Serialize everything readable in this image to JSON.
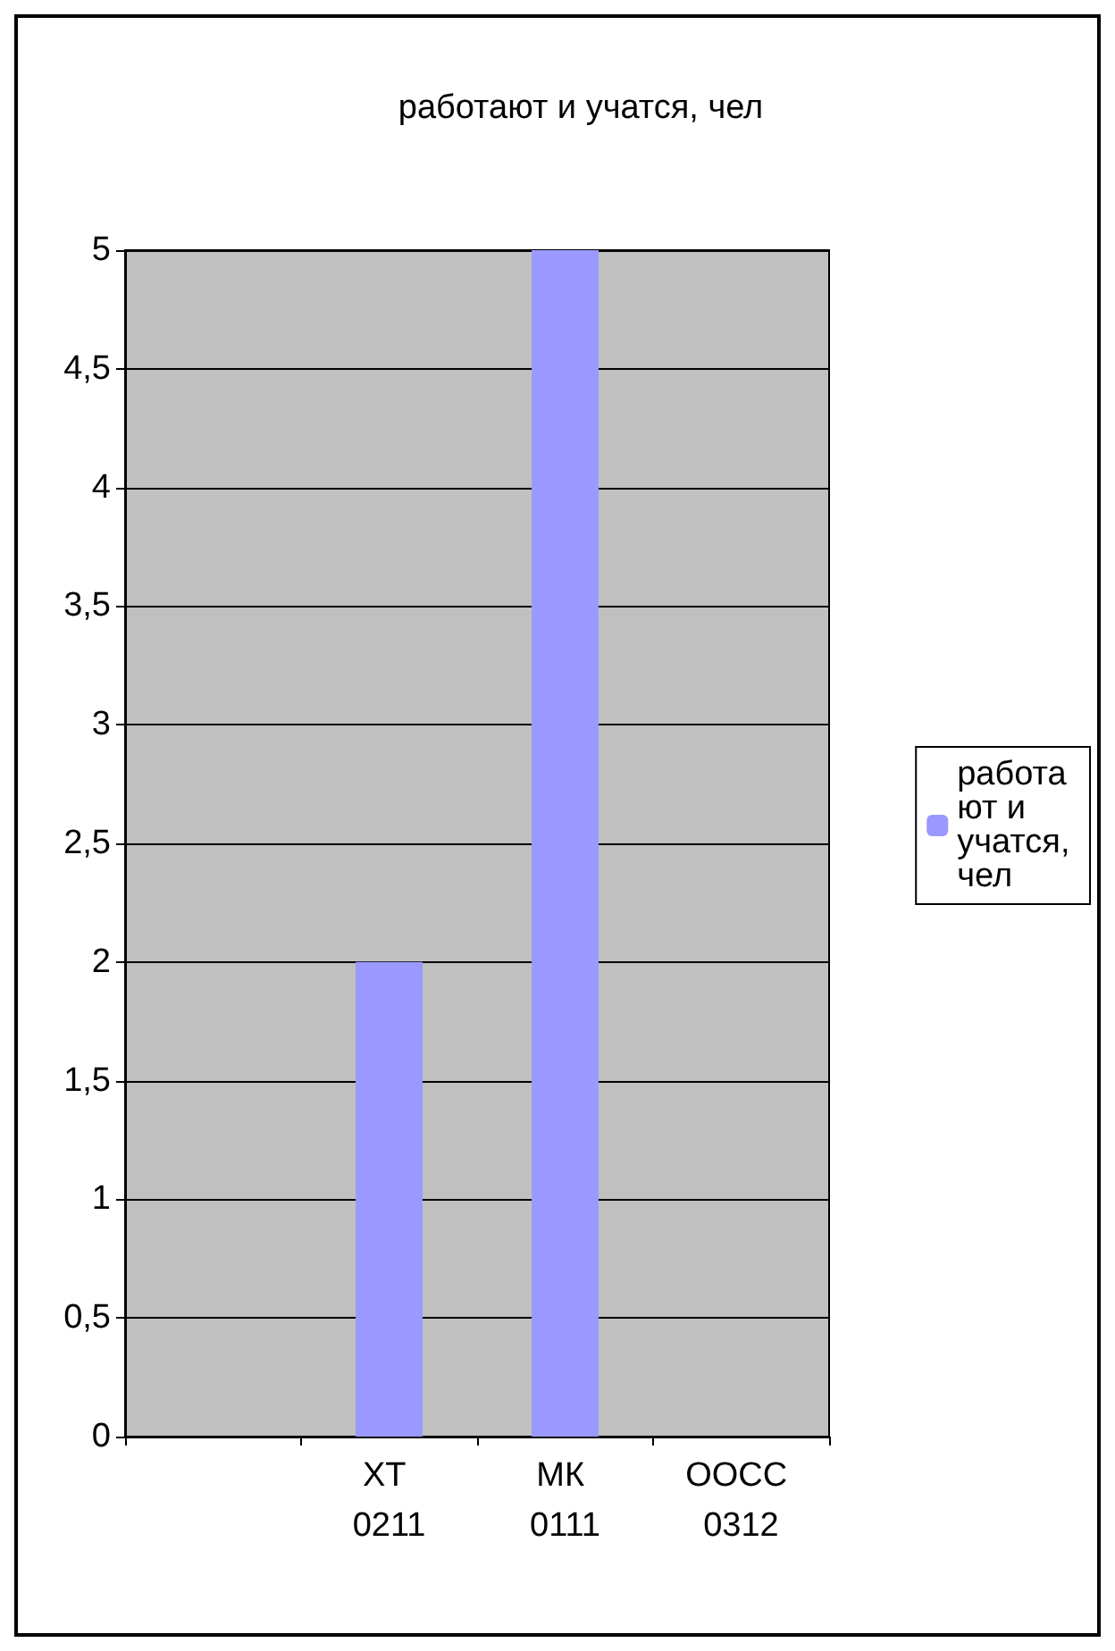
{
  "chart_data": {
    "type": "bar",
    "title": "работают и учатся, чел",
    "categories": [
      null,
      "ХТ 0211",
      "МК 0111",
      "ООСС 0312"
    ],
    "series": [
      {
        "name": "работают и учатся, чел",
        "color": "#9999ff",
        "values": [
          null,
          2,
          5,
          0
        ]
      }
    ],
    "ylim": [
      0,
      5
    ],
    "yticks": [
      0,
      {
        "value": 0.5,
        "label": "0,5"
      },
      1,
      {
        "value": 1.5,
        "label": "1,5"
      },
      2,
      {
        "value": 2.5,
        "label": "2,5"
      },
      3,
      {
        "value": 3.5,
        "label": "3,5"
      },
      4,
      {
        "value": 4.5,
        "label": "4,5"
      },
      5
    ],
    "grid": "y",
    "legend": "right"
  }
}
